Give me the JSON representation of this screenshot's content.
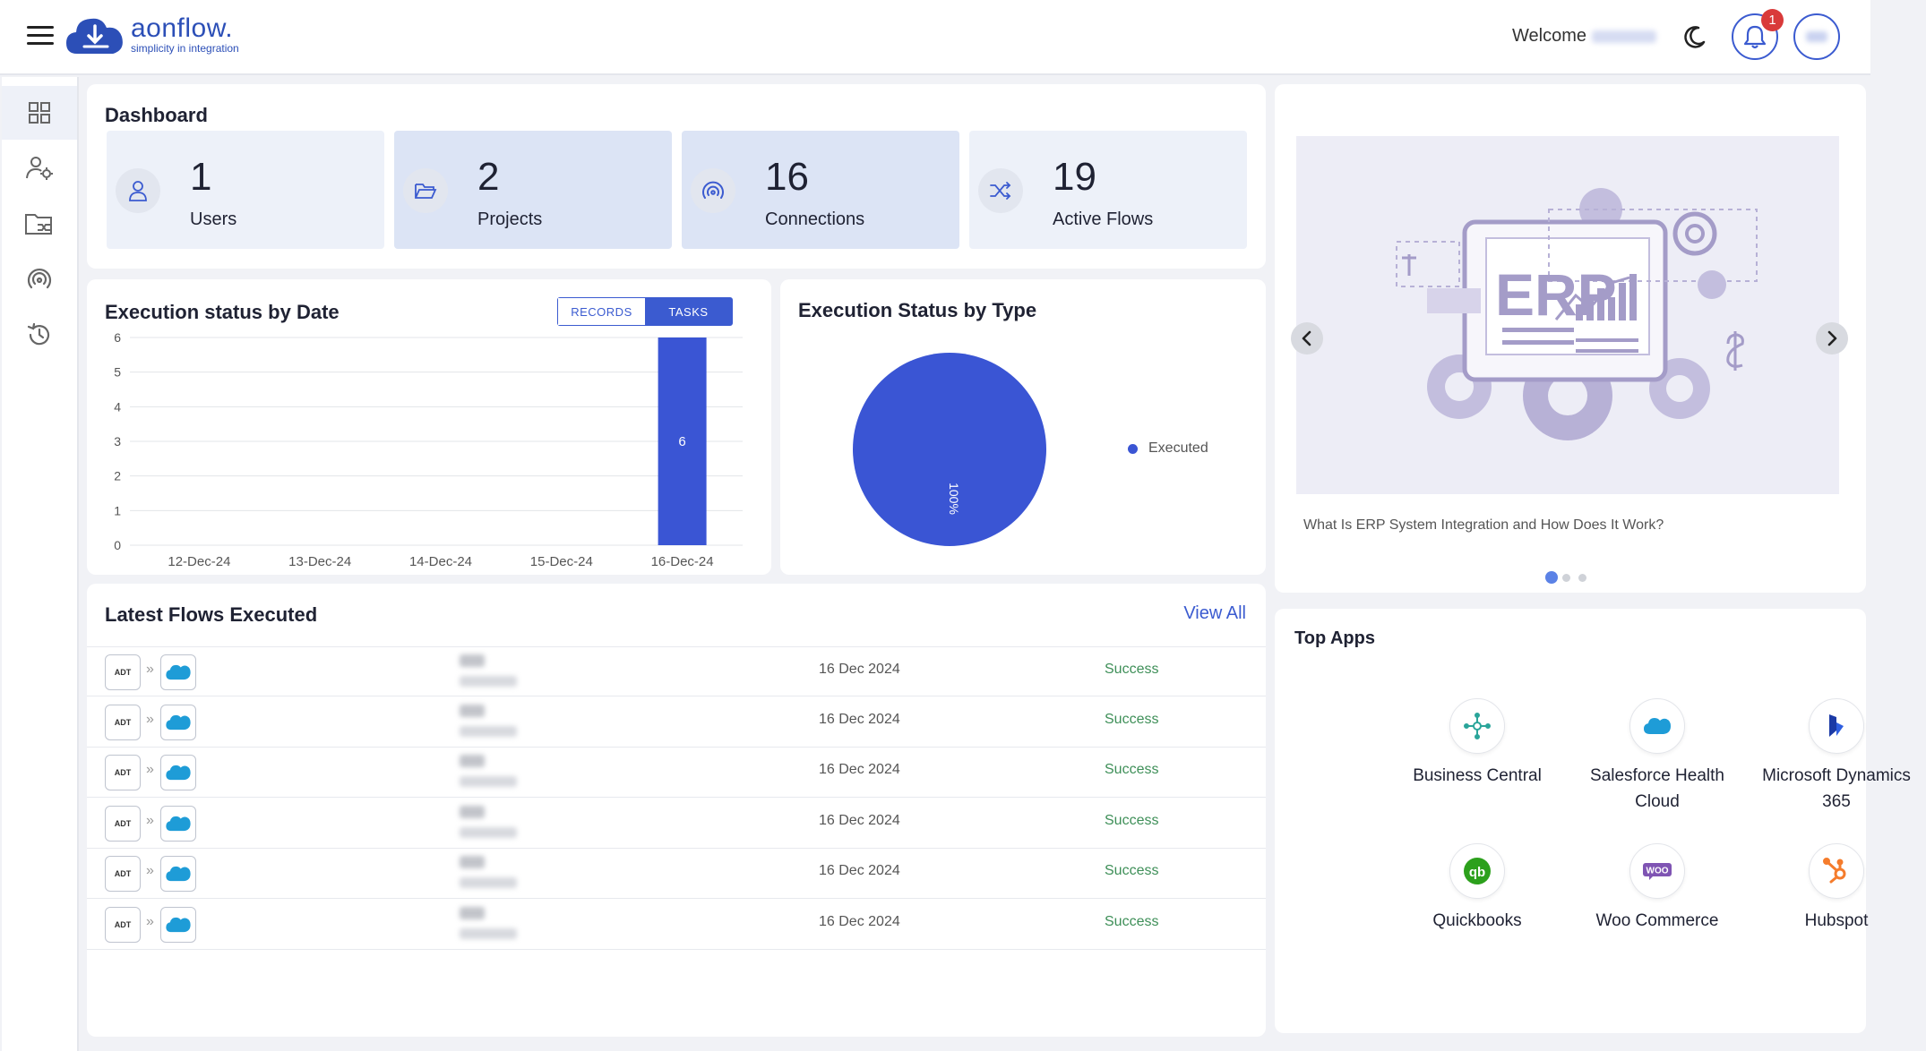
{
  "header": {
    "logo_name": "aonflow.",
    "logo_tagline": "simplicity in integration",
    "welcome_label": "Welcome",
    "notification_count": "1"
  },
  "sidebar": {
    "items": [
      {
        "icon": "dashboard-grid-icon",
        "active": true
      },
      {
        "icon": "user-settings-icon",
        "active": false
      },
      {
        "icon": "folder-flow-icon",
        "active": false
      },
      {
        "icon": "connections-icon",
        "active": false
      },
      {
        "icon": "history-icon",
        "active": false
      }
    ]
  },
  "dashboard": {
    "title": "Dashboard",
    "stats": [
      {
        "value": "1",
        "label": "Users",
        "icon": "user-icon"
      },
      {
        "value": "2",
        "label": "Projects",
        "icon": "folder-icon"
      },
      {
        "value": "16",
        "label": "Connections",
        "icon": "connections-icon"
      },
      {
        "value": "19",
        "label": "Active Flows",
        "icon": "shuffle-icon"
      }
    ]
  },
  "execution_by_date": {
    "title": "Execution status by Date",
    "toggle": {
      "records": "RECORDS",
      "tasks": "TASKS",
      "selected": "TASKS"
    }
  },
  "execution_by_type": {
    "title": "Execution Status by Type"
  },
  "chart_data": [
    {
      "type": "bar",
      "title": "Execution status by Date",
      "categories": [
        "12-Dec-24",
        "13-Dec-24",
        "14-Dec-24",
        "15-Dec-24",
        "16-Dec-24"
      ],
      "values": [
        0,
        0,
        0,
        0,
        6
      ],
      "data_labels": [
        "",
        "",
        "",
        "",
        "6"
      ],
      "ylim": [
        0,
        6
      ],
      "yticks": [
        "0",
        "1",
        "2",
        "3",
        "4",
        "5",
        "6"
      ],
      "grid": true,
      "color": "#3a55d4"
    },
    {
      "type": "pie",
      "title": "Execution Status by Type",
      "slices": [
        {
          "label": "Executed",
          "value": 100,
          "display": "100%"
        }
      ],
      "legend": "right",
      "color": "#3a55d4"
    }
  ],
  "latest_flows": {
    "title": "Latest Flows Executed",
    "view_all": "View All",
    "source_icon_label": "ADT",
    "target_icon_label": "salesforce",
    "rows": [
      {
        "date": "16 Dec 2024",
        "status": "Success"
      },
      {
        "date": "16 Dec 2024",
        "status": "Success"
      },
      {
        "date": "16 Dec 2024",
        "status": "Success"
      },
      {
        "date": "16 Dec 2024",
        "status": "Success"
      },
      {
        "date": "16 Dec 2024",
        "status": "Success"
      },
      {
        "date": "16 Dec 2024",
        "status": "Success"
      }
    ]
  },
  "carousel": {
    "image_text": "ERP",
    "caption": "What Is ERP System Integration and How Does It Work?",
    "slide_count": 3,
    "active_slide": 1
  },
  "top_apps": {
    "title": "Top Apps",
    "apps": [
      {
        "name": "Business Central",
        "icon": "business-central-icon"
      },
      {
        "name": "Salesforce Health Cloud",
        "icon": "salesforce-icon"
      },
      {
        "name": "Microsoft Dynamics 365",
        "icon": "dynamics-icon"
      },
      {
        "name": "Quickbooks",
        "icon": "quickbooks-icon"
      },
      {
        "name": "Woo Commerce",
        "icon": "woocommerce-icon"
      },
      {
        "name": "Hubspot",
        "icon": "hubspot-icon"
      }
    ]
  },
  "colors": {
    "accent": "#3b5bd0",
    "chart": "#3a55d4",
    "success": "#3e8f58",
    "badge": "#d93a3a"
  }
}
